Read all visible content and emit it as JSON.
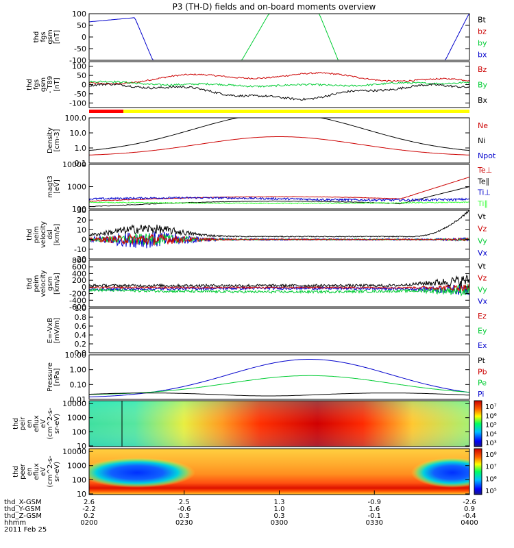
{
  "title": "P3 (TH-D) fields and on-board moments overview",
  "colors": {
    "black": "#000000",
    "red": "#cc0000",
    "green": "#00cc33",
    "blue": "#0000cc",
    "brightgreen": "#33ff33",
    "yellow": "#ffff00",
    "barred": "#ff0000"
  },
  "x_axis": {
    "rows": [
      {
        "label": "thd_X-GSM",
        "values": [
          "2.6",
          "2.5",
          "1.3",
          "-0.9",
          "-2.6"
        ]
      },
      {
        "label": "thd_Y-GSM",
        "values": [
          "-2.2",
          "-0.6",
          "1.0",
          "1.6",
          "0.9"
        ]
      },
      {
        "label": "thd_Z-GSM",
        "values": [
          "0.2",
          "0.3",
          "0.3",
          "-0.1",
          "-0.4"
        ]
      },
      {
        "label": "hhmm",
        "values": [
          "0200",
          "0230",
          "0300",
          "0330",
          "0400"
        ]
      }
    ],
    "date": "2011 Feb 25"
  },
  "chart_data": [
    {
      "id": "fgs",
      "type": "line",
      "ylabel": [
        "thd",
        "fgs",
        "gsm",
        "[nT]"
      ],
      "yticks": [
        "100",
        "50",
        "0",
        "-50",
        "-100"
      ],
      "ylim": [
        -100,
        100
      ],
      "legend": [
        {
          "name": "Bt",
          "color": "black"
        },
        {
          "name": "bz",
          "color": "red"
        },
        {
          "name": "by",
          "color": "green"
        },
        {
          "name": "bx",
          "color": "blue"
        }
      ]
    },
    {
      "id": "fgs_t89",
      "type": "line",
      "ylabel": [
        "thd",
        "fgs",
        "gsm",
        "- T89",
        "[nT]"
      ],
      "yticks": [
        "100",
        "50",
        "0",
        "-50",
        "-100"
      ],
      "ylim": [
        -125,
        125
      ],
      "legend": [
        {
          "name": "Bz",
          "color": "red"
        },
        {
          "name": "By",
          "color": "green"
        },
        {
          "name": "Bx",
          "color": "black"
        }
      ]
    },
    {
      "id": "density",
      "type": "line",
      "scale": "log",
      "ylabel": [
        "Density",
        "[cm-3]"
      ],
      "yticks": [
        "100.0",
        "10.0",
        "1.0",
        "0.1"
      ],
      "ylim": [
        0.1,
        100
      ],
      "legend": [
        {
          "name": "Ne",
          "color": "red"
        },
        {
          "name": "Ni",
          "color": "black"
        },
        {
          "name": "Npot",
          "color": "blue"
        }
      ]
    },
    {
      "id": "temperature",
      "type": "line",
      "scale": "log",
      "ylabel": [
        "magt3",
        "[eV]"
      ],
      "yticks": [
        "10000",
        "1000",
        "100"
      ],
      "ylim": [
        100,
        10000
      ],
      "legend": [
        {
          "name": "Te⊥",
          "color": "red"
        },
        {
          "name": "Te∥",
          "color": "black"
        },
        {
          "name": "Ti⊥",
          "color": "blue"
        },
        {
          "name": "Ti∥",
          "color": "brightgreen"
        }
      ]
    },
    {
      "id": "velocity_e",
      "type": "line",
      "ylabel": [
        "thd",
        "peim",
        "velocity",
        "dsl",
        "[km/s]"
      ],
      "yticks": [
        "30",
        "20",
        "10",
        "0",
        "-10",
        "-20"
      ],
      "ylim": [
        -20,
        30
      ],
      "legend": [
        {
          "name": "Vt",
          "color": "black"
        },
        {
          "name": "Vz",
          "color": "red"
        },
        {
          "name": "Vy",
          "color": "green"
        },
        {
          "name": "Vx",
          "color": "blue"
        }
      ]
    },
    {
      "id": "velocity_gsm",
      "type": "line",
      "ylabel": [
        "thd",
        "peim",
        "velocity",
        "gsm",
        "[km/s]"
      ],
      "yticks": [
        "800",
        "600",
        "400",
        "200",
        "0",
        "-200",
        "-400",
        "-600"
      ],
      "ylim": [
        -600,
        800
      ],
      "legend": [
        {
          "name": "Vt",
          "color": "black"
        },
        {
          "name": "Vz",
          "color": "red"
        },
        {
          "name": "Vy",
          "color": "green"
        },
        {
          "name": "Vx",
          "color": "blue"
        }
      ]
    },
    {
      "id": "efield",
      "type": "line",
      "ylabel": [
        "E=-VxB",
        "[mV/m]"
      ],
      "yticks": [
        "1.0",
        "0.8",
        "0.6",
        "0.4",
        "0.2",
        "0.0"
      ],
      "ylim": [
        0,
        1
      ],
      "legend": [
        {
          "name": "Ez",
          "color": "red"
        },
        {
          "name": "Ey",
          "color": "green"
        },
        {
          "name": "Ex",
          "color": "blue"
        }
      ]
    },
    {
      "id": "pressure",
      "type": "line",
      "scale": "log",
      "ylabel": [
        "Pressure",
        "[nPa]"
      ],
      "yticks": [
        "10.00",
        "1.00",
        "0.10",
        "0.01"
      ],
      "ylim": [
        0.01,
        10
      ],
      "legend": [
        {
          "name": "Pt",
          "color": "black"
        },
        {
          "name": "Pb",
          "color": "red"
        },
        {
          "name": "Pe",
          "color": "green"
        },
        {
          "name": "Pi",
          "color": "blue"
        }
      ]
    },
    {
      "id": "ion_spec",
      "type": "heatmap",
      "ylabel": [
        "thd",
        "peir",
        "en",
        "eflux",
        "eV",
        "(cm^2-s-",
        "sr-eV)"
      ],
      "yticks": [
        "10000",
        "1000",
        "100",
        "10"
      ],
      "ylim": [
        10,
        20000
      ],
      "colorbar_ticks": [
        "10⁷",
        "10⁶",
        "10⁵",
        "10⁴",
        "10³"
      ]
    },
    {
      "id": "elec_spec",
      "type": "heatmap",
      "ylabel": [
        "thd",
        "peer",
        "en",
        "eflux",
        "eV",
        "(cm^2-s-",
        "sr-eV)"
      ],
      "yticks": [
        "10000",
        "1000",
        "100",
        "10"
      ],
      "ylim": [
        7,
        30000
      ],
      "colorbar_ticks": [
        "10⁸",
        "10⁷",
        "10⁶",
        "10⁵"
      ]
    }
  ]
}
